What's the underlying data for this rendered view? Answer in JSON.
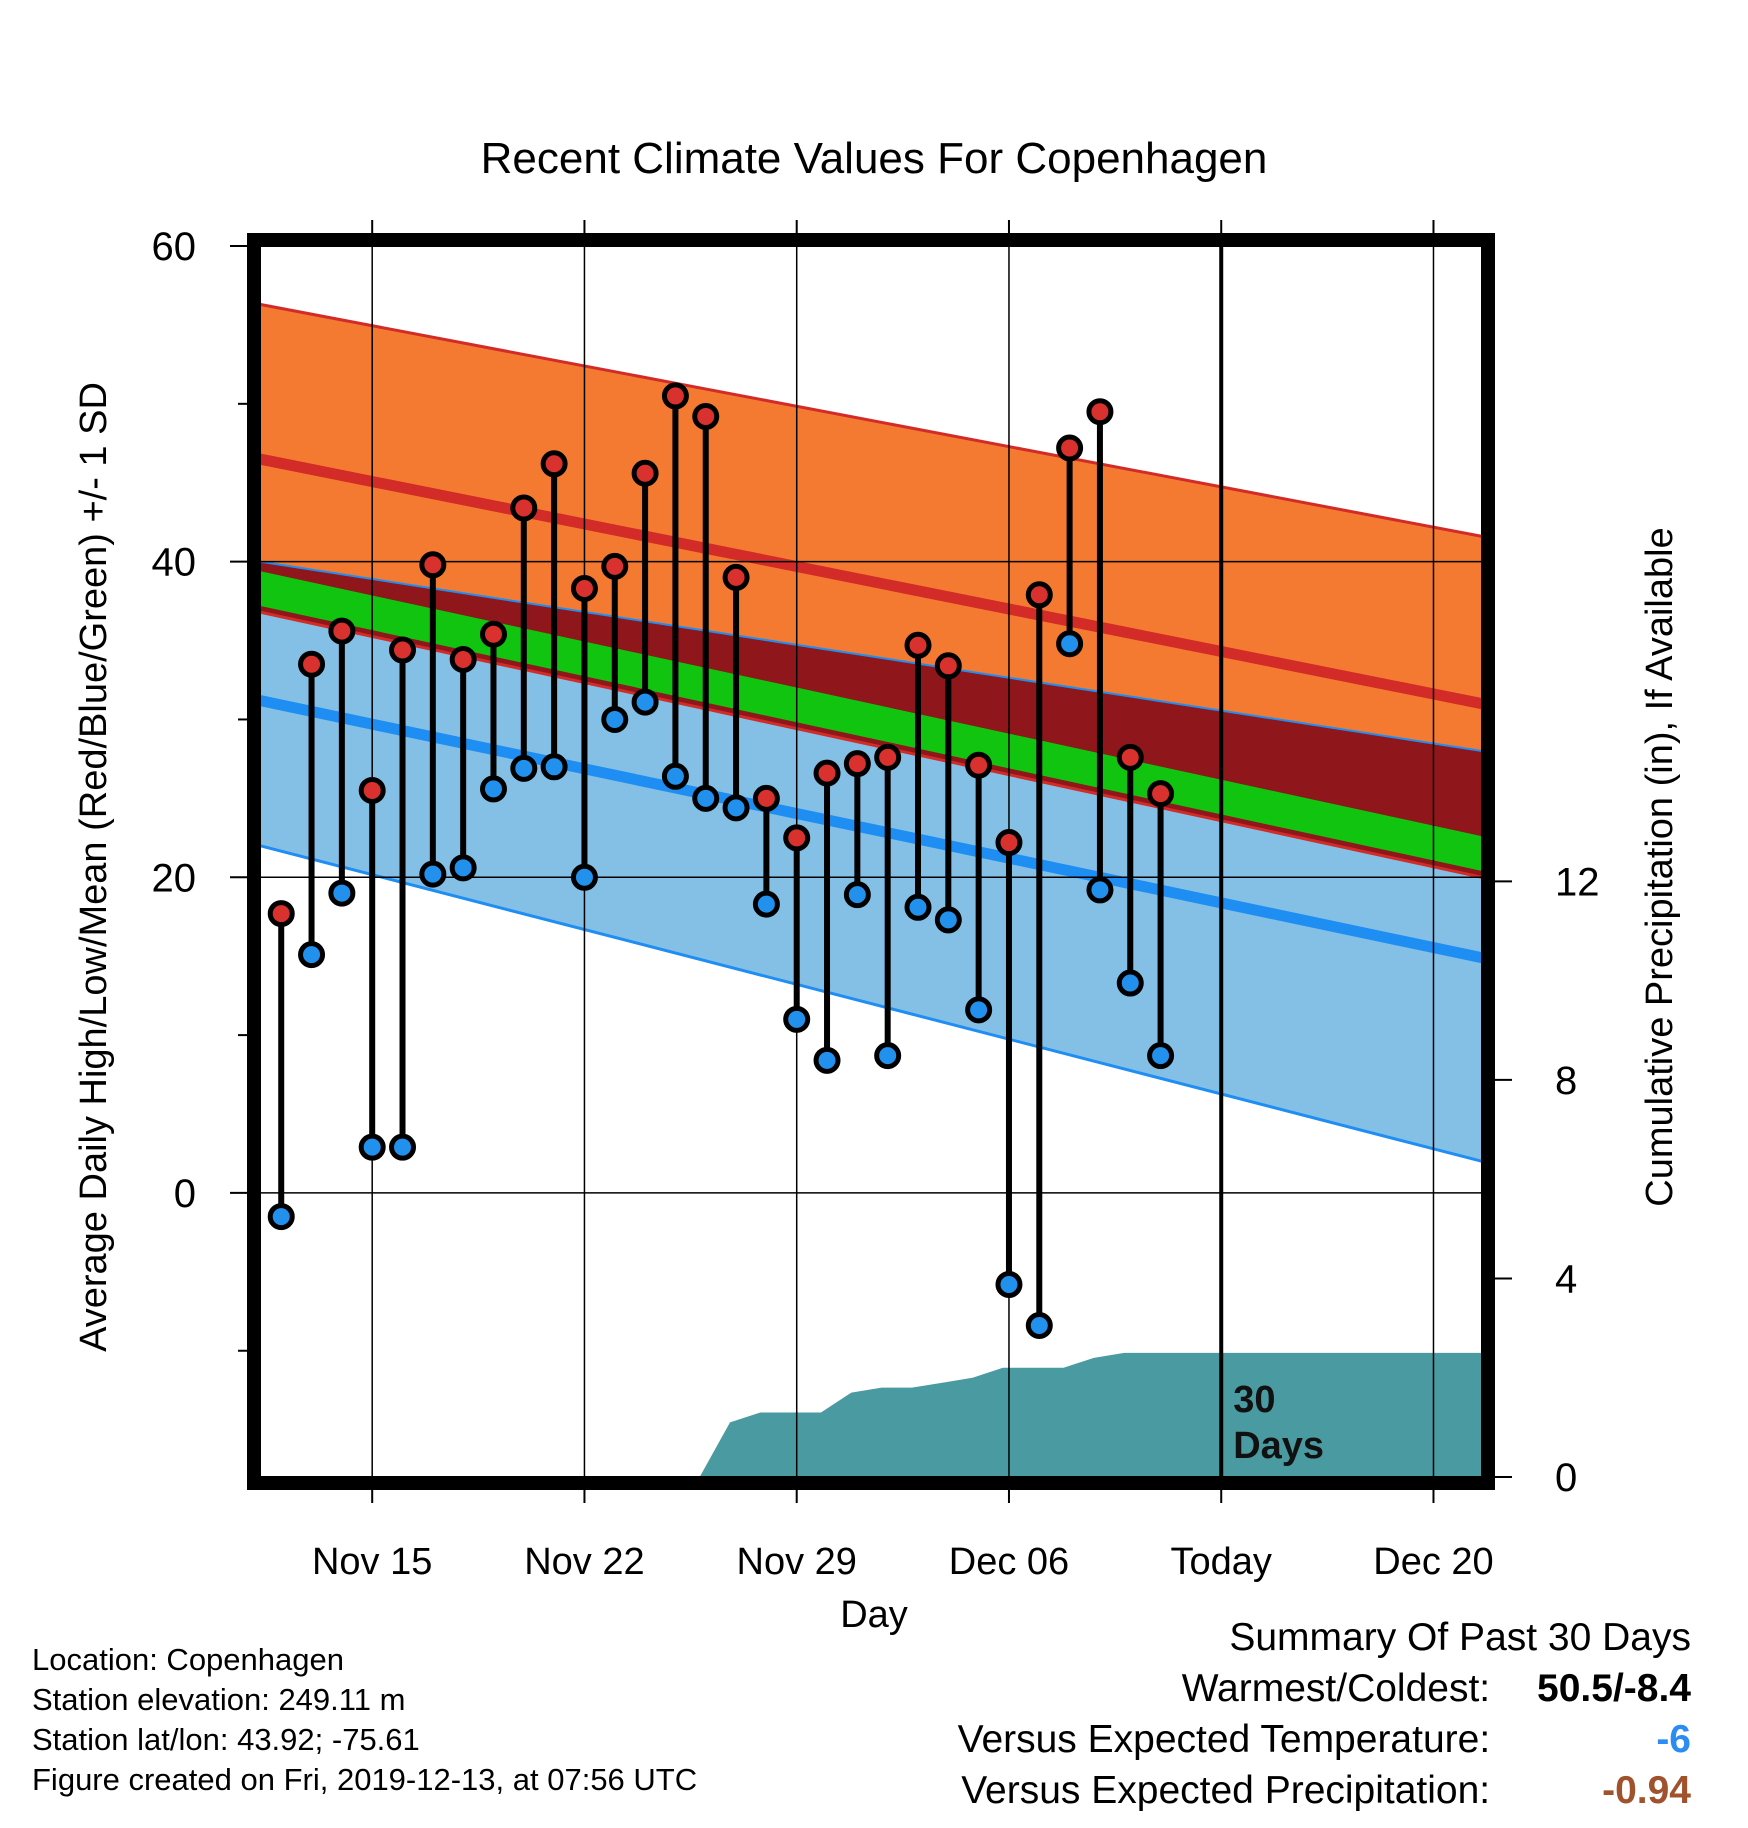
{
  "chart_data": {
    "type": "line",
    "title": "Recent Climate Values For Copenhagen",
    "xlabel": "Day",
    "ylabel": "Average Daily High/Low/Mean (Red/Blue/Green) +/- 1 SD",
    "y2label": "Cumulative Precipitation (in), If Available",
    "x_ticks": [
      {
        "label": "Nov 15",
        "day": 3
      },
      {
        "label": "Nov 22",
        "day": 10
      },
      {
        "label": "Nov 29",
        "day": 17
      },
      {
        "label": "Dec 06",
        "day": 24
      },
      {
        "label": "Today",
        "day": 31
      },
      {
        "label": "Dec 20",
        "day": 38
      }
    ],
    "xlim": [
      -0.7,
      39.6
    ],
    "ylim": [
      -18,
      60
    ],
    "y_ticks": [
      "0",
      "20",
      "40",
      "60"
    ],
    "y2lim": [
      0,
      24.8
    ],
    "y2_ticks": [
      "0",
      "4",
      "8",
      "12"
    ],
    "today_day": 31,
    "today_annotation": [
      "30",
      "Days"
    ],
    "normals": {
      "days": [
        -0.7,
        39.6
      ],
      "high_mean": [
        46.5,
        31.0
      ],
      "high_upper": [
        56.3,
        41.6
      ],
      "high_lower": [
        40.0,
        28.0
      ],
      "low_mean": [
        31.2,
        14.9
      ],
      "low_upper": [
        36.8,
        20.0
      ],
      "low_lower": [
        22.0,
        2.0
      ],
      "mean": [
        38.3,
        21.5
      ]
    },
    "series": [
      {
        "name": "High",
        "days": [
          0,
          1,
          2,
          3,
          4,
          5,
          6,
          7,
          8,
          9,
          10,
          11,
          12,
          13,
          14,
          15,
          16,
          17,
          18,
          19,
          20,
          21,
          22,
          23,
          24,
          25,
          26,
          27,
          28,
          29
        ],
        "values": [
          17.7,
          33.5,
          35.6,
          25.5,
          34.4,
          39.8,
          33.8,
          35.4,
          43.4,
          46.2,
          38.3,
          39.7,
          45.6,
          50.5,
          49.2,
          39.0,
          25.0,
          22.5,
          26.6,
          27.2,
          27.6,
          34.7,
          33.4,
          27.1,
          22.2,
          37.9,
          47.2,
          49.5,
          27.6,
          25.3
        ]
      },
      {
        "name": "Low",
        "days": [
          0,
          1,
          2,
          3,
          4,
          5,
          6,
          7,
          8,
          9,
          10,
          11,
          12,
          13,
          14,
          15,
          16,
          17,
          18,
          19,
          20,
          21,
          22,
          23,
          24,
          25,
          26,
          27,
          28,
          29
        ],
        "values": [
          -1.5,
          15.1,
          19.0,
          2.9,
          2.9,
          20.2,
          20.6,
          25.6,
          26.9,
          27.0,
          20.0,
          30.0,
          31.1,
          26.4,
          25.0,
          24.4,
          18.3,
          11.0,
          8.4,
          18.9,
          8.7,
          18.1,
          17.3,
          11.6,
          -5.8,
          -8.4,
          34.8,
          19.2,
          13.3,
          8.7
        ]
      },
      {
        "name": "Precipitation",
        "days": [
          13.8,
          14.8,
          15.8,
          16.8,
          17.8,
          18.8,
          19.8,
          20.8,
          21.8,
          22.8,
          23.8,
          24.8,
          25.8,
          26.8,
          27.8,
          28.8,
          39.6
        ],
        "values": [
          0,
          1.1,
          1.3,
          1.3,
          1.3,
          1.7,
          1.8,
          1.8,
          1.9,
          2.0,
          2.2,
          2.2,
          2.2,
          2.4,
          2.5,
          2.5,
          2.5
        ]
      }
    ]
  },
  "footer": {
    "location": "Location: Copenhagen",
    "elevation": "Station elevation: 249.11 m",
    "latlon": "Station lat/lon: 43.92; -75.61",
    "created": "Figure created on Fri, 2019-12-13, at 07:56 UTC"
  },
  "summary": {
    "heading": "Summary Of Past 30 Days",
    "warmest_label": "Warmest/Coldest:",
    "warmest_value": "50.5/-8.4",
    "temp_label": "Versus Expected Temperature:",
    "temp_value": "-6",
    "precip_label": "Versus Expected Precipitation:",
    "precip_value": "-0.94"
  },
  "colors": {
    "high_band": "#f47a31",
    "high_line": "#d22b28",
    "overlap_band": "#8f161a",
    "mean_band": "#11c410",
    "low_band": "#84c0e6",
    "low_line": "#1f8ef2",
    "precip_fill": "#4a9aa1",
    "high_marker": "#d9312d",
    "low_marker": "#2291ee",
    "temp_value": "#2b8cf3",
    "precip_value": "#a0522d"
  }
}
